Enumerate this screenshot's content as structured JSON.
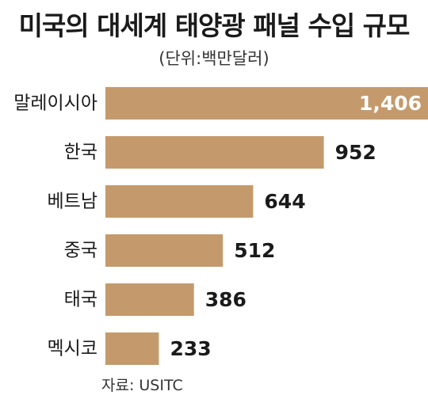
{
  "chart_data": {
    "type": "bar",
    "orientation": "horizontal",
    "title": "미국의 대세계 태양광 패널 수입 규모",
    "subtitle": "(단위:백만달러)",
    "source": "자료: USITC",
    "categories": [
      "말레이시아",
      "한국",
      "베트남",
      "중국",
      "태국",
      "멕시코"
    ],
    "values": [
      1406,
      952,
      644,
      512,
      386,
      233
    ],
    "value_labels": [
      "1,406",
      "952",
      "644",
      "512",
      "386",
      "233"
    ],
    "xlim": [
      0,
      1406
    ],
    "grid": false,
    "legend": "none",
    "bar_color": "#C49A6C",
    "inside_label_color": "#ffffff",
    "outside_label_color": "#1a1a1a"
  }
}
